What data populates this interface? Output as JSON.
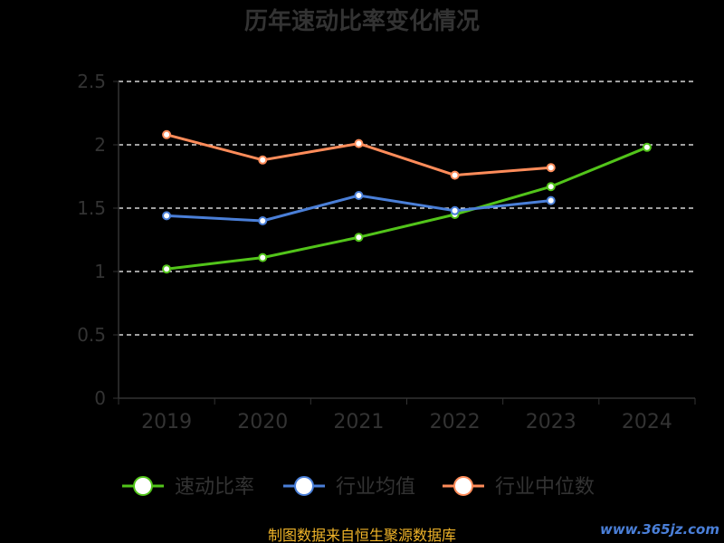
{
  "chart_data": {
    "type": "line",
    "title": "历年速动比率变化情况",
    "categories": [
      "2019",
      "2020",
      "2021",
      "2022",
      "2023",
      "2024"
    ],
    "ylim": [
      0,
      2.5
    ],
    "yticks": [
      "0",
      "0.5",
      "1",
      "1.5",
      "2",
      "2.5"
    ],
    "grid": true,
    "legend_position": "bottom",
    "series": [
      {
        "name": "速动比率",
        "color": "#52c41a",
        "values": [
          1.02,
          1.11,
          1.27,
          1.45,
          1.67,
          1.98
        ]
      },
      {
        "name": "行业均值",
        "color": "#4a7fd8",
        "values": [
          1.44,
          1.4,
          1.6,
          1.48,
          1.56,
          null
        ]
      },
      {
        "name": "行业中位数",
        "color": "#ff8c5a",
        "values": [
          2.08,
          1.88,
          2.01,
          1.76,
          1.82,
          null
        ]
      }
    ]
  },
  "footer": "制图数据来自恒生聚源数据库",
  "watermark": "www.365jz.com"
}
